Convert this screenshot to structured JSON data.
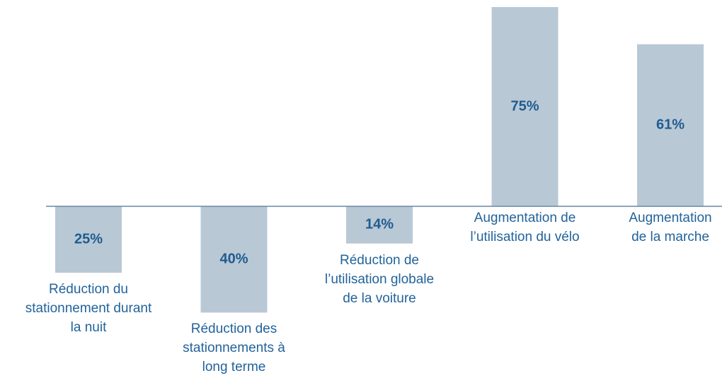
{
  "chart_data": {
    "type": "bar",
    "categories": [
      "Réduction du\nstationnement durant\nla nuit",
      "Réduction des\nstationnements à\nlong terme",
      "Réduction de\nl’utilisation globale\nde la voiture",
      "Augmentation de\nl’utilisation du vélo",
      "Augmentation\nde la marche"
    ],
    "values": [
      -25,
      -40,
      -14,
      75,
      61
    ],
    "value_labels": [
      "25%",
      "40%",
      "14%",
      "75%",
      "61%"
    ],
    "color": "#b9c8d5"
  }
}
